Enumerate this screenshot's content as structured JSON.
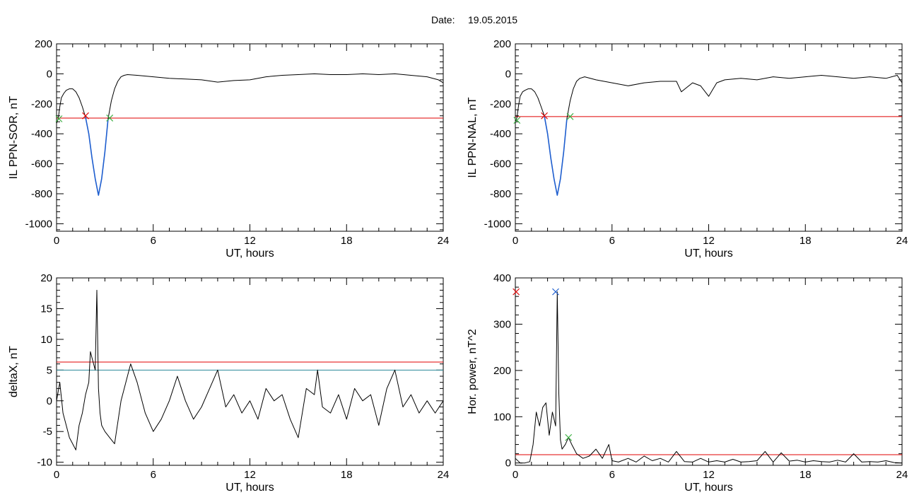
{
  "header": {
    "date_label": "Date:",
    "date_value": "19.05.2015"
  },
  "colors": {
    "trace": "#000000",
    "red": "#e00000",
    "blue": "#1f5fd0",
    "green": "#3cb043",
    "teal": "#2a8a9a"
  },
  "chart_data": [
    {
      "id": "sor",
      "type": "line",
      "ylabel": "IL PPN-SOR, nT",
      "xlabel": "UT, hours",
      "xlim": [
        0,
        24
      ],
      "ylim": [
        -1050,
        200
      ],
      "x_ticks": [
        0,
        6,
        12,
        18,
        24
      ],
      "y_ticks": [
        -1000,
        -800,
        -600,
        -400,
        -200,
        0,
        200
      ],
      "threshold": -295,
      "series": [
        {
          "role": "trace",
          "color": "black",
          "x": [
            0,
            0.1,
            0.2,
            0.3,
            0.45,
            0.6,
            0.8,
            1.0,
            1.2,
            1.4,
            1.6,
            1.8,
            2.0,
            2.2,
            2.4,
            2.6,
            2.8,
            3.0,
            3.2,
            3.4,
            3.6,
            3.8,
            4.0,
            4.2,
            4.4,
            5,
            6,
            7,
            8,
            9,
            10,
            11,
            12,
            13,
            14,
            15,
            16,
            17,
            18,
            19,
            20,
            21,
            22,
            23,
            23.7,
            24
          ],
          "y": [
            -330,
            -300,
            -220,
            -160,
            -130,
            -110,
            -100,
            -100,
            -120,
            -160,
            -220,
            -290,
            -400,
            -560,
            -700,
            -810,
            -700,
            -520,
            -300,
            -180,
            -100,
            -50,
            -20,
            -10,
            -5,
            -10,
            -20,
            -30,
            -35,
            -40,
            -55,
            -45,
            -40,
            -20,
            -10,
            -5,
            0,
            -5,
            -5,
            0,
            -5,
            0,
            -10,
            -20,
            -40,
            -60
          ]
        },
        {
          "role": "highlight",
          "color": "blue",
          "x": [
            1.8,
            2.0,
            2.2,
            2.4,
            2.6,
            2.8,
            3.0,
            3.2
          ],
          "y": [
            -290,
            -400,
            -560,
            -700,
            -810,
            -700,
            -520,
            -300
          ]
        }
      ],
      "markers": [
        {
          "x": 1.8,
          "y": -280,
          "color": "red"
        },
        {
          "x": 0.15,
          "y": -300,
          "color": "green"
        },
        {
          "x": 3.3,
          "y": -295,
          "color": "green"
        }
      ]
    },
    {
      "id": "nal",
      "type": "line",
      "ylabel": "IL PPN-NAL, nT",
      "xlabel": "UT, hours",
      "xlim": [
        0,
        24
      ],
      "ylim": [
        -1050,
        200
      ],
      "x_ticks": [
        0,
        6,
        12,
        18,
        24
      ],
      "y_ticks": [
        -1000,
        -800,
        -600,
        -400,
        -200,
        0,
        200
      ],
      "threshold": -285,
      "series": [
        {
          "role": "trace",
          "color": "black",
          "x": [
            0,
            0.1,
            0.2,
            0.3,
            0.45,
            0.6,
            0.8,
            1.0,
            1.2,
            1.4,
            1.6,
            1.8,
            2.0,
            2.2,
            2.4,
            2.6,
            2.8,
            3.0,
            3.2,
            3.4,
            3.6,
            3.8,
            4.0,
            4.3,
            5,
            6,
            7,
            8,
            9,
            10,
            10.3,
            11,
            11.5,
            12,
            12.5,
            13,
            14,
            15,
            16,
            17,
            18,
            19,
            20,
            21,
            22,
            23,
            23.7,
            24
          ],
          "y": [
            -330,
            -290,
            -210,
            -150,
            -120,
            -110,
            -100,
            -100,
            -120,
            -160,
            -220,
            -280,
            -400,
            -560,
            -700,
            -810,
            -700,
            -520,
            -300,
            -180,
            -100,
            -50,
            -30,
            -20,
            -40,
            -60,
            -80,
            -60,
            -50,
            -50,
            -120,
            -60,
            -80,
            -150,
            -60,
            -40,
            -30,
            -40,
            -20,
            -30,
            -20,
            -10,
            -20,
            -30,
            -20,
            -30,
            -10,
            -60
          ]
        },
        {
          "role": "highlight",
          "color": "blue",
          "x": [
            1.8,
            2.0,
            2.2,
            2.4,
            2.6,
            2.8,
            3.0,
            3.2
          ],
          "y": [
            -280,
            -400,
            -560,
            -700,
            -810,
            -700,
            -520,
            -300
          ]
        }
      ],
      "markers": [
        {
          "x": 1.8,
          "y": -280,
          "color": "red"
        },
        {
          "x": 0.1,
          "y": -310,
          "color": "green"
        },
        {
          "x": 3.4,
          "y": -285,
          "color": "green"
        }
      ]
    },
    {
      "id": "deltax",
      "type": "line",
      "ylabel": "deltaX, nT",
      "xlabel": "UT, hours",
      "xlim": [
        0,
        24
      ],
      "ylim": [
        -10.5,
        20
      ],
      "x_ticks": [
        0,
        6,
        12,
        18,
        24
      ],
      "y_ticks": [
        -10,
        -5,
        0,
        5,
        10,
        15,
        20
      ],
      "thresholds": [
        {
          "value": 6.3,
          "color": "red"
        },
        {
          "value": 5.0,
          "color": "teal"
        }
      ],
      "series": [
        {
          "role": "trace",
          "color": "black",
          "x": [
            0,
            0.2,
            0.4,
            0.6,
            0.8,
            1.0,
            1.2,
            1.4,
            1.6,
            1.8,
            2.0,
            2.1,
            2.2,
            2.4,
            2.5,
            2.6,
            2.7,
            2.8,
            3.0,
            3.3,
            3.6,
            4.0,
            4.3,
            4.6,
            5.0,
            5.5,
            6.0,
            6.5,
            7.0,
            7.5,
            8.0,
            8.5,
            9.0,
            9.5,
            10.0,
            10.5,
            11,
            11.5,
            12,
            12.5,
            13,
            13.5,
            14,
            14.5,
            15,
            15.5,
            16,
            16.2,
            16.5,
            17,
            17.5,
            18,
            18.5,
            19,
            19.5,
            20,
            20.5,
            21,
            21.5,
            22,
            22.5,
            23,
            23.5,
            24
          ],
          "y": [
            0,
            3,
            -2,
            -4,
            -6,
            -7,
            -8,
            -4,
            -2,
            1,
            3,
            8,
            7,
            5,
            18,
            2,
            -2,
            -4,
            -5,
            -6,
            -7,
            0,
            3,
            6,
            3,
            -2,
            -5,
            -3,
            0,
            4,
            0,
            -3,
            -1,
            2,
            5,
            -1,
            1,
            -2,
            0,
            -3,
            2,
            0,
            1,
            -3,
            -6,
            2,
            1,
            5,
            -1,
            -2,
            1,
            -3,
            2,
            0,
            1,
            -4,
            2,
            5,
            -1,
            1,
            -2,
            0,
            -2,
            0
          ]
        }
      ]
    },
    {
      "id": "power",
      "type": "line",
      "ylabel": "Hor. power, nT^2",
      "xlabel": "UT, hours",
      "xlim": [
        0,
        24
      ],
      "ylim": [
        -5,
        400
      ],
      "x_ticks": [
        0,
        6,
        12,
        18,
        24
      ],
      "y_ticks": [
        0,
        100,
        200,
        300,
        400
      ],
      "threshold": 18,
      "series": [
        {
          "role": "trace",
          "color": "black",
          "x": [
            0,
            0.3,
            0.6,
            0.9,
            1.1,
            1.3,
            1.5,
            1.7,
            1.9,
            2.1,
            2.3,
            2.5,
            2.6,
            2.7,
            2.8,
            2.9,
            3.1,
            3.3,
            3.5,
            3.8,
            4.2,
            4.6,
            5.0,
            5.4,
            5.8,
            6.0,
            6.4,
            7,
            7.5,
            8,
            8.5,
            9,
            9.5,
            10,
            10.5,
            11,
            11.5,
            12,
            12.5,
            13,
            13.5,
            14,
            14.5,
            15,
            15.5,
            16,
            16.5,
            17,
            17.5,
            18,
            18.5,
            19,
            19.5,
            20,
            20.5,
            21,
            21.5,
            22,
            22.5,
            23,
            23.5,
            24
          ],
          "y": [
            10,
            0,
            0,
            3,
            40,
            110,
            80,
            120,
            130,
            60,
            110,
            80,
            370,
            150,
            50,
            30,
            40,
            55,
            40,
            20,
            10,
            15,
            30,
            10,
            40,
            5,
            2,
            10,
            2,
            15,
            5,
            10,
            2,
            25,
            3,
            2,
            10,
            2,
            5,
            2,
            8,
            2,
            3,
            5,
            25,
            2,
            22,
            4,
            6,
            2,
            5,
            3,
            2,
            6,
            2,
            20,
            2,
            3,
            2,
            5,
            1,
            0
          ]
        }
      ],
      "markers": [
        {
          "x": 0.05,
          "y": 370,
          "color": "red"
        },
        {
          "x": 2.5,
          "y": 370,
          "color": "blue"
        },
        {
          "x": 3.3,
          "y": 55,
          "color": "green"
        }
      ]
    }
  ]
}
